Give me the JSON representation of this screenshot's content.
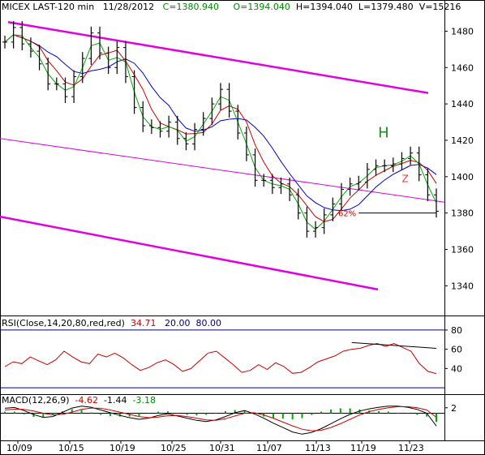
{
  "header": {
    "symbol": "MICEX LAST-120 min",
    "date": "11/28/2012",
    "close": "C=1380.940",
    "open": "O=1394.040",
    "high": "H=1394.040",
    "low": "L=1379.480",
    "volume": "V=15216"
  },
  "annotations": {
    "h_letter": "H",
    "z_letter": "Z",
    "fib_label": "62%"
  },
  "rsi_panel": {
    "title": "RSI(Close,14,20,80,red,red)",
    "value": "34.71",
    "low": "20.00",
    "high": "80.00",
    "ticks": [
      "80",
      "60",
      "40"
    ]
  },
  "macd_panel": {
    "title": "MACD(12,26,9)",
    "macd": "-4.62",
    "signal": "-1.44",
    "hist": "-3.18",
    "ticks": [
      "2"
    ]
  },
  "colors": {
    "channel": "#e000e0",
    "red_line": "#cc0000",
    "green_line": "#00aa00",
    "blue_line": "#0000cc",
    "rsi_line": "#cc0000",
    "rsi_band": "#000080",
    "macd_line": "#000000",
    "signal_line": "#cc0000",
    "hist": "#00aa00",
    "z_color": "#e04040",
    "h_color": "#228822"
  },
  "chart_data": {
    "type": "line",
    "price_axis": {
      "ylim": [
        1325,
        1490
      ],
      "ticks": [
        1480,
        1460,
        1440,
        1420,
        1400,
        1380,
        1360,
        1340
      ]
    },
    "x_ticks": [
      "10/09",
      "10/15",
      "10/19",
      "10/25",
      "10/31",
      "11/07",
      "11/13",
      "11/19",
      "11/23"
    ],
    "series": [
      {
        "name": "",
        "values": [
          1474,
          1482,
          1473,
          1469,
          1462,
          1451,
          1451,
          1444,
          1455,
          1465,
          1479,
          1468,
          1460,
          1471,
          1455,
          1438,
          1428,
          1427,
          1425,
          1430,
          1421,
          1418,
          1426,
          1432,
          1440,
          1448,
          1436,
          1424,
          1412,
          1398,
          1398,
          1394,
          1396,
          1390,
          1380,
          1370,
          1372,
          1379,
          1385,
          1393,
          1396,
          1397,
          1404,
          1406,
          1406,
          1407,
          1410,
          1413,
          1401,
          1390,
          1381
        ]
      }
    ],
    "rsi_values": [
      42,
      47,
      45,
      52,
      48,
      44,
      49,
      58,
      52,
      47,
      45,
      55,
      52,
      56,
      51,
      44,
      38,
      41,
      46,
      49,
      44,
      37,
      40,
      48,
      56,
      58,
      51,
      44,
      36,
      38,
      44,
      39,
      46,
      42,
      35,
      36,
      41,
      47,
      50,
      53,
      58,
      60,
      61,
      64,
      66,
      63,
      66,
      62,
      58,
      45,
      37,
      34.71
    ],
    "macd_values": [
      1.8,
      2.1,
      1.0,
      -0.5,
      -1.5,
      -1.2,
      0.3,
      1.9,
      2.6,
      2.2,
      1.2,
      0.2,
      -0.8,
      -1.6,
      -2.2,
      -1.8,
      -0.8,
      -0.2,
      -1.0,
      -1.8,
      -2.6,
      -3.0,
      -2.4,
      -1.2,
      0.2,
      1.0,
      -0.2,
      -1.8,
      -3.6,
      -5.2,
      -6.8,
      -7.6,
      -7.0,
      -5.6,
      -3.8,
      -2.0,
      -0.4,
      0.8,
      1.6,
      2.2,
      2.6,
      2.6,
      2.2,
      1.4,
      0.0,
      -4.62
    ],
    "signal_values": [
      1.2,
      1.5,
      1.4,
      0.8,
      0.0,
      -0.6,
      -0.4,
      0.4,
      1.4,
      1.9,
      1.8,
      1.2,
      0.4,
      -0.4,
      -1.2,
      -1.6,
      -1.4,
      -0.9,
      -0.8,
      -1.2,
      -1.8,
      -2.4,
      -2.6,
      -2.0,
      -1.0,
      0.0,
      0.2,
      -0.6,
      -1.8,
      -3.2,
      -4.6,
      -5.8,
      -6.4,
      -6.2,
      -5.2,
      -3.8,
      -2.2,
      -0.6,
      0.6,
      1.4,
      2.0,
      2.4,
      2.4,
      2.0,
      1.2,
      -1.44
    ],
    "macd_ylim": [
      -9,
      4
    ]
  }
}
